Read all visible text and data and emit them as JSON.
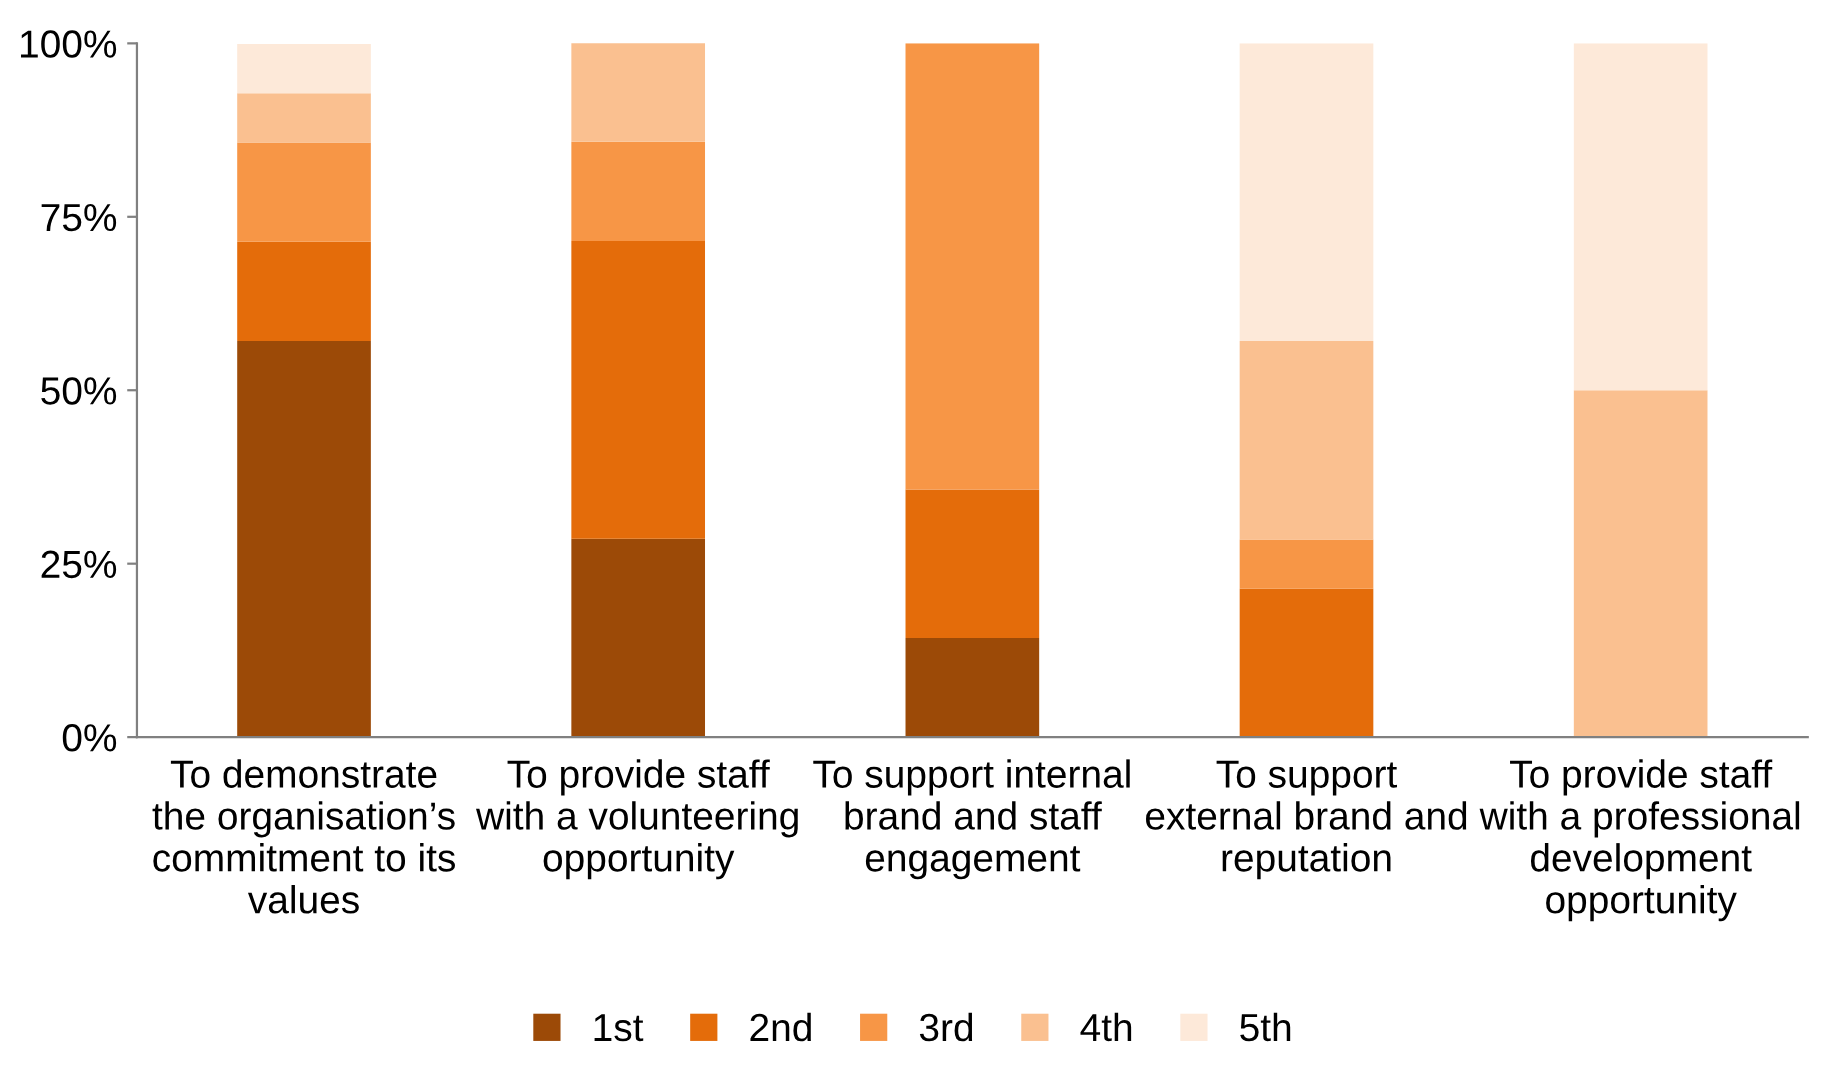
{
  "chart_data": {
    "type": "bar",
    "stacked": true,
    "categories": [
      "To demonstrate\nthe organisation’s\ncommitment to its\nvalues",
      "To provide staff\nwith a volunteering\nopportunity",
      "To support internal\nbrand and staff\nengagement",
      "To support\nexternal brand and\nreputation",
      "To provide staff\nwith a professional\ndevelopment\nopportunity"
    ],
    "series": [
      {
        "name": "1st",
        "color": "#9c4a07",
        "values": [
          57.1,
          28.6,
          14.3,
          0,
          0
        ]
      },
      {
        "name": "2nd",
        "color": "#e46c0a",
        "values": [
          14.3,
          42.9,
          21.4,
          21.4,
          0
        ]
      },
      {
        "name": "3rd",
        "color": "#f79646",
        "values": [
          14.3,
          14.3,
          64.3,
          7.1,
          0
        ]
      },
      {
        "name": "4th",
        "color": "#fac090",
        "values": [
          7.1,
          14.3,
          0,
          28.6,
          50
        ]
      },
      {
        "name": "5th",
        "color": "#fde9d9",
        "values": [
          7.1,
          0,
          0,
          42.9,
          50
        ]
      }
    ],
    "ylim": [
      0,
      100
    ],
    "yticks": [
      {
        "value": 0,
        "label": "0%"
      },
      {
        "value": 25,
        "label": "25%"
      },
      {
        "value": 50,
        "label": "50%"
      },
      {
        "value": 75,
        "label": "75%"
      },
      {
        "value": 100,
        "label": "100%"
      }
    ],
    "grid": false,
    "legend": "bottom"
  }
}
